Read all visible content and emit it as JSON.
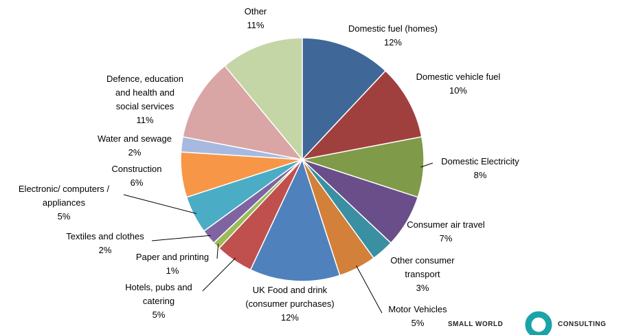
{
  "chart_data": {
    "type": "pie",
    "categories": [
      "Domestic fuel (homes)",
      "Domestic vehicle fuel",
      "Domestic Electricity",
      "Consumer air travel",
      "Other consumer\ntransport",
      "Motor Vehicles",
      "UK Food and drink\n(consumer purchases)",
      "Hotels, pubs and\ncatering",
      "Paper and printing",
      "Textiles and clothes",
      "Electronic/ computers /\nappliances",
      "Construction",
      "Water and sewage",
      "Defence, education\nand health and\nsocial services",
      "Other"
    ],
    "values": [
      12,
      10,
      8,
      7,
      3,
      5,
      12,
      5,
      1,
      2,
      5,
      6,
      2,
      11,
      11
    ],
    "value_labels": [
      "12%",
      "10%",
      "8%",
      "7%",
      "3%",
      "5%",
      "12%",
      "5%",
      "1%",
      "2%",
      "5%",
      "6%",
      "2%",
      "11%",
      "11%"
    ],
    "colors": [
      "#3f6797",
      "#a0403e",
      "#7f9a48",
      "#6a4e89",
      "#3a8fa3",
      "#d2803a",
      "#4f81bd",
      "#c0504d",
      "#9bbb59",
      "#8064a2",
      "#4bacc6",
      "#f79646",
      "#a7b9e0",
      "#d9a6a5",
      "#c4d6a5"
    ]
  },
  "logo": {
    "left": "SMALL WORLD",
    "right": "CONSULTING"
  }
}
